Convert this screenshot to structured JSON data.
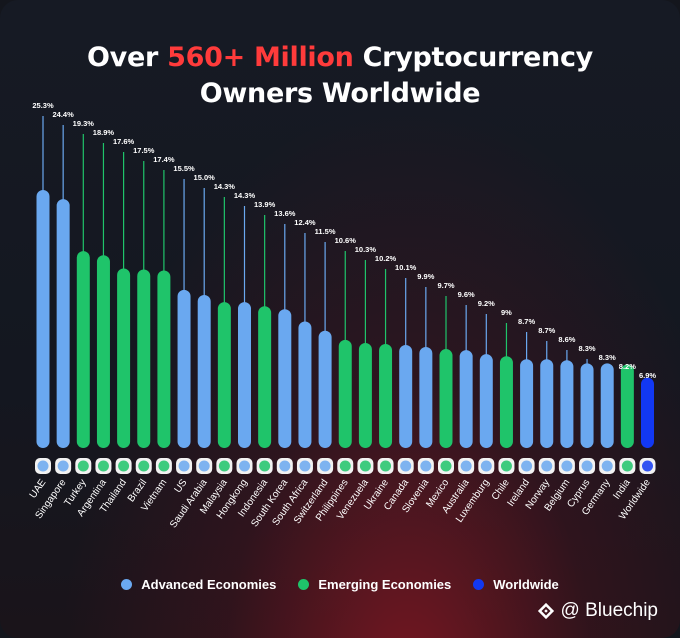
{
  "header": {
    "title_part1": "Over ",
    "title_highlight": "560+ Million",
    "title_part2": " Cryptocurrency",
    "title_line2": "Owners Worldwide"
  },
  "colors": {
    "advanced": "#6aa8f0",
    "emerging": "#1fc46a",
    "worldwide": "#1238f2",
    "highlight": "#ff3b3b"
  },
  "chart_data": {
    "type": "bar",
    "title": "Over 560+ Million Cryptocurrency Owners Worldwide",
    "categories": [
      "UAE",
      "Singapore",
      "Turkey",
      "Argentina",
      "Thailand",
      "Brazil",
      "Vietnam",
      "US",
      "Saudi Arabia",
      "Malaysia",
      "Hongkong",
      "Indonesia",
      "South Korea",
      "South Africa",
      "Switzerland",
      "Philippines",
      "Venezuela",
      "Ukraine",
      "Canada",
      "Slovenia",
      "Mexico",
      "Australia",
      "Luxemburg",
      "Chile",
      "Ireland",
      "Norway",
      "Belgium",
      "Cyprus",
      "Germany",
      "India",
      "Worldwide"
    ],
    "values": [
      25.3,
      24.4,
      19.3,
      18.9,
      17.6,
      17.5,
      17.4,
      15.5,
      15.0,
      14.3,
      14.3,
      13.9,
      13.6,
      12.4,
      11.5,
      10.6,
      10.3,
      10.2,
      10.1,
      9.9,
      9.7,
      9.6,
      9.2,
      9,
      8.7,
      8.7,
      8.6,
      8.3,
      8.3,
      8.2,
      6.9
    ],
    "labels": [
      "25.3%",
      "24.4%",
      "19.3%",
      "18.9%",
      "17.6%",
      "17.5%",
      "17.4%",
      "15.5%",
      "15.0%",
      "14.3%",
      "14.3%",
      "13.9%",
      "13.6%",
      "12.4%",
      "11.5%",
      "10.6%",
      "10.3%",
      "10.2%",
      "10.1%",
      "9.9%",
      "9.7%",
      "9.6%",
      "9.2%",
      "9%",
      "8.7%",
      "8.7%",
      "8.6%",
      "8.3%",
      "8.3%",
      "8.2%",
      "6.9%"
    ],
    "groups": [
      "advanced",
      "advanced",
      "emerging",
      "emerging",
      "emerging",
      "emerging",
      "emerging",
      "advanced",
      "advanced",
      "emerging",
      "advanced",
      "emerging",
      "advanced",
      "advanced",
      "advanced",
      "emerging",
      "emerging",
      "emerging",
      "advanced",
      "advanced",
      "emerging",
      "advanced",
      "advanced",
      "emerging",
      "advanced",
      "advanced",
      "advanced",
      "advanced",
      "advanced",
      "emerging",
      "worldwide"
    ],
    "ylim": [
      0,
      30
    ],
    "xlabel": "",
    "ylabel": "",
    "legend_placement": "bottom",
    "grid": false
  },
  "legend": [
    {
      "key": "advanced",
      "label": "Advanced Economies"
    },
    {
      "key": "emerging",
      "label": "Emerging Economies"
    },
    {
      "key": "worldwide",
      "label": "Worldwide"
    }
  ],
  "brand": {
    "label": "@ Bluechip",
    "icon": "bluechip-logo-icon"
  }
}
